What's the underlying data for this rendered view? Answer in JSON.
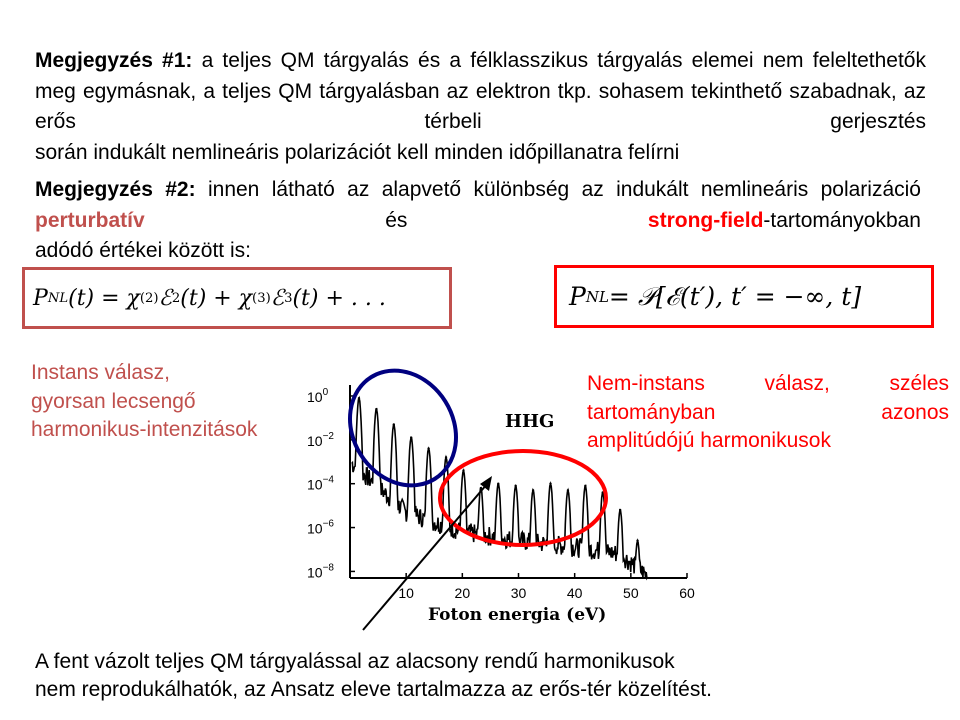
{
  "note1": {
    "label": "Megjegyzés #1:",
    "text": " a teljes QM tárgyalás és a félklasszikus tárgyalás elemei nem feleltethetők meg egymásnak, a teljes QM tárgyalásban az elektron tkp. sohasem tekinthető szabadnak, az erős térbeli gerjesztés",
    "last_line": "során indukált nemlineáris polarizációt kell minden időpillanatra felírni"
  },
  "note2": {
    "label": "Megjegyzés #2:",
    "text_before": "  innen látható az  alapvető különbség az indukált nemlineáris polarizáció ",
    "highlight_perturbative": "perturbatív",
    "text_middle": "   és ",
    "highlight_strong_field": "strong-field",
    "text_after": "-tartományokban",
    "last_line": "adódó értékei között is:"
  },
  "formula_left": {
    "P": "P",
    "P_sub": "NL",
    "arg": "(t) = χ",
    "chi2_sup": "(2)",
    "E1": "ℰ",
    "E1_sup": "2",
    "mid": "(t) + χ",
    "chi3_sup": "(3)",
    "E2": "ℰ",
    "E2_sup": "3",
    "tail": "(t) + . . ."
  },
  "formula_right": {
    "P": "P",
    "P_sub": "NL",
    "rest": " = 𝒫[ℰ(t′), t′ = −∞, t]"
  },
  "note_left_lines": [
    "Instans válasz,",
    "gyorsan lecsengő",
    "harmonikus-intenzitások"
  ],
  "note_right": {
    "text": "Nem-instans válasz, széles tartományban azonos",
    "last_line": "amplitúdójú harmonikusok"
  },
  "bottom_lines": [
    "A fent vázolt teljes QM tárgyalással az alacsony rendű harmonikusok",
    "nem reprodukálhatók, az Ansatz eleve tartalmazza az erős-tér közelítést."
  ],
  "colors": {
    "perturbative": "#c0504d",
    "strong_field": "#ff0000",
    "left_ellipse": "#000080",
    "right_ellipse": "#ff0000"
  },
  "chart_data": {
    "type": "line",
    "title": "HHG",
    "xlabel": "Foton energia (eV)",
    "ylabel": "",
    "x_ticks": [
      "10",
      "20",
      "30",
      "40",
      "50",
      "60"
    ],
    "y_ticks": [
      {
        "base": "10",
        "exp": "0"
      },
      {
        "base": "10",
        "exp": "-2"
      },
      {
        "base": "10",
        "exp": "-4"
      },
      {
        "base": "10",
        "exp": "-6"
      },
      {
        "base": "10",
        "exp": "-8"
      }
    ],
    "xlim": [
      0,
      60
    ],
    "ylim_log10": [
      -8.3,
      0.5
    ],
    "log_scale_y": true,
    "grid": false,
    "harmonic_peaks": [
      {
        "x": 1.6,
        "log10_y": -0.1
      },
      {
        "x": 4.7,
        "log10_y": -0.6
      },
      {
        "x": 7.8,
        "log10_y": -1.3
      },
      {
        "x": 10.9,
        "log10_y": -1.9
      },
      {
        "x": 14.0,
        "log10_y": -2.4
      },
      {
        "x": 17.1,
        "log10_y": -2.8
      },
      {
        "x": 20.2,
        "log10_y": -3.4
      },
      {
        "x": 23.3,
        "log10_y": -4.2
      },
      {
        "x": 26.4,
        "log10_y": -4.0
      },
      {
        "x": 29.5,
        "log10_y": -4.1
      },
      {
        "x": 32.6,
        "log10_y": -4.3
      },
      {
        "x": 35.7,
        "log10_y": -4.0
      },
      {
        "x": 38.8,
        "log10_y": -4.3
      },
      {
        "x": 41.9,
        "log10_y": -4.1
      },
      {
        "x": 45.0,
        "log10_y": -4.4
      },
      {
        "x": 48.1,
        "log10_y": -5.2
      },
      {
        "x": 51.2,
        "log10_y": -6.6
      }
    ],
    "background_level_log10": [
      {
        "x": 0,
        "log10_y": -3.0
      },
      {
        "x": 10,
        "log10_y": -5.3
      },
      {
        "x": 20,
        "log10_y": -6.2
      },
      {
        "x": 30,
        "log10_y": -6.6
      },
      {
        "x": 40,
        "log10_y": -6.9
      },
      {
        "x": 48,
        "log10_y": -7.2
      },
      {
        "x": 53,
        "log10_y": -8.2
      }
    ]
  }
}
